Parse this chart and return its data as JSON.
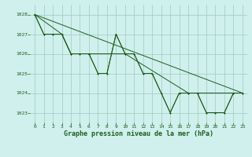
{
  "title": "Graphe pression niveau de la mer (hPa)",
  "bg_color": "#cff0ec",
  "line_color": "#1e5c1e",
  "xlim": [
    -0.5,
    23.5
  ],
  "ylim": [
    1022.5,
    1028.5
  ],
  "yticks": [
    1023,
    1024,
    1025,
    1026,
    1027,
    1028
  ],
  "xticks": [
    0,
    1,
    2,
    3,
    4,
    5,
    6,
    7,
    8,
    9,
    10,
    11,
    12,
    13,
    14,
    15,
    16,
    17,
    18,
    19,
    20,
    21,
    22,
    23
  ],
  "grid_color": "#a0c8c0",
  "tick_fontsize": 4.5,
  "label_fontsize": 6,
  "line1_x": [
    0,
    23
  ],
  "line1_y": [
    1028.0,
    1024.0
  ],
  "line2_y": [
    1028.0,
    1027.0,
    1027.0,
    1027.0,
    1026.0,
    1026.0,
    1026.0,
    1025.0,
    1025.0,
    1027.0,
    1026.0,
    1026.0,
    1025.0,
    1025.0,
    1024.0,
    1023.0,
    1024.0,
    1024.0,
    1024.0,
    1023.0,
    1023.0,
    1023.0,
    1024.0,
    1024.0
  ],
  "line3_y": [
    1028.0,
    1027.0,
    1027.0,
    1027.0,
    1026.0,
    1026.0,
    1026.0,
    1025.0,
    1025.0,
    1027.0,
    1026.0,
    1026.0,
    1025.0,
    1025.0,
    1024.0,
    1023.0,
    1024.0,
    1024.0,
    1024.0,
    1023.0,
    1023.0,
    1023.0,
    1024.0,
    1024.0
  ],
  "line4_x": [
    0,
    3,
    4,
    6,
    10,
    17,
    23
  ],
  "line4_y": [
    1028.0,
    1027.0,
    1026.0,
    1026.0,
    1026.0,
    1024.0,
    1024.0
  ],
  "lw": 0.7,
  "ms": 2.0
}
